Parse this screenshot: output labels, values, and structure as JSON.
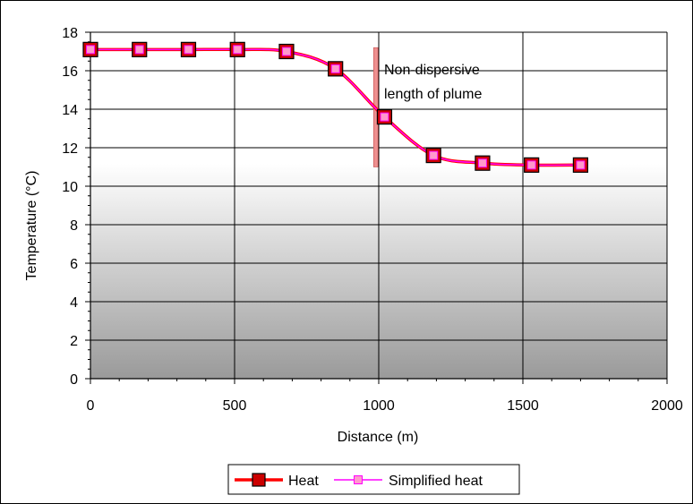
{
  "chart_data": {
    "type": "line",
    "xlabel": "Distance (m)",
    "ylabel": "Temperature (°C)",
    "xlim": [
      0,
      2000
    ],
    "ylim": [
      0,
      18
    ],
    "x_ticks": [
      0,
      500,
      1000,
      1500,
      2000
    ],
    "y_ticks": [
      0,
      2,
      4,
      6,
      8,
      10,
      12,
      14,
      16,
      18
    ],
    "grid": true,
    "legend_position": "bottom",
    "series": [
      {
        "name": "Heat",
        "color": "#ff0000",
        "marker_fill": "#cc0000",
        "x": [
          0,
          170,
          340,
          510,
          680,
          850,
          1020,
          1190,
          1360,
          1530,
          1700
        ],
        "y": [
          17.1,
          17.1,
          17.1,
          17.1,
          17.0,
          16.1,
          13.6,
          11.6,
          11.2,
          11.1,
          11.1
        ]
      },
      {
        "name": "Simplified heat",
        "color": "#ff00ff",
        "marker_fill": "#ff99cc",
        "x": [
          0,
          170,
          340,
          510,
          680,
          850,
          1020,
          1190,
          1360,
          1530,
          1700
        ],
        "y": [
          17.1,
          17.1,
          17.1,
          17.1,
          17.0,
          16.1,
          13.6,
          11.6,
          11.2,
          11.1,
          11.1
        ]
      }
    ],
    "annotation": {
      "lines": [
        "Non-dispersive",
        "length of plume"
      ],
      "x": 990,
      "y_range": [
        11,
        17.2
      ],
      "color": "#ee9090"
    }
  }
}
